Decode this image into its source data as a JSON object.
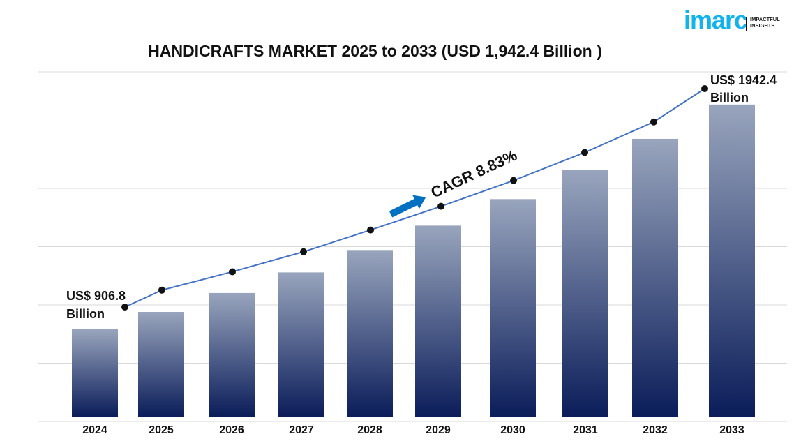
{
  "chart_data": {
    "type": "bar",
    "title": "HANDICRAFTS MARKET 2025 to 2033 (USD 1,942.4 Billion )",
    "categories": [
      "2024",
      "2025",
      "2026",
      "2027",
      "2028",
      "2029",
      "2030",
      "2031",
      "2032",
      "2033"
    ],
    "values": [
      906.8,
      986.9,
      1074.0,
      1168.9,
      1272.1,
      1384.4,
      1506.7,
      1639.7,
      1784.5,
      1942.4
    ],
    "ylim": [
      482,
      2093
    ],
    "grid": true,
    "trend_line": true,
    "annotations": {
      "start_label": [
        "US$ 906.8",
        "Billion"
      ],
      "end_label": [
        "US$ 1942.4",
        "Billion"
      ],
      "cagr": "CAGR 8.83%"
    },
    "colors": {
      "bar_top": "#99a5bd",
      "bar_bottom": "#0b1d5a",
      "line": "#4472c4",
      "arrow": "#0070c0",
      "grid": "#d9d9d9"
    }
  },
  "logo": {
    "word": "imarc",
    "tagline": [
      "IMPACTFUL",
      "INSIGHTS"
    ]
  }
}
